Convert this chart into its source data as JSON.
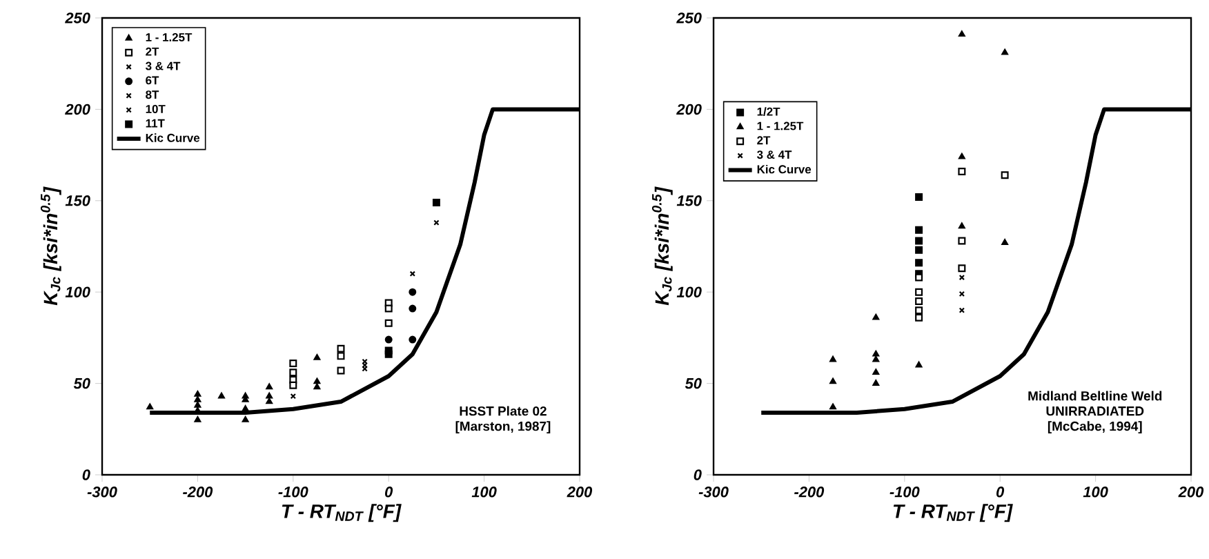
{
  "chart_data": [
    {
      "type": "scatter",
      "xlabel": "T - RT$_{NDT}$ [°F]",
      "ylabel": "K$_{Jc}$ [ksi*in$^{0.5}$]",
      "xlim": [
        -300,
        200
      ],
      "ylim": [
        0,
        250
      ],
      "xticks": [
        -300,
        -200,
        -100,
        0,
        100,
        200
      ],
      "yticks": [
        0,
        50,
        100,
        150,
        200,
        250
      ],
      "grid": false,
      "legend": "top left",
      "annotations": [
        "HSST Plate 02",
        "[Marston, 1987]"
      ],
      "series": [
        {
          "name": "1 - 1.25T",
          "color": "#000000",
          "marker": "triangle",
          "x": [
            -250,
            -200,
            -200,
            -200,
            -200,
            -200,
            -175,
            -150,
            -150,
            -150,
            -150,
            -125,
            -125,
            -125,
            -75,
            -75,
            -75
          ],
          "values": [
            37,
            44,
            41,
            38,
            35,
            30,
            43,
            43,
            41,
            36,
            30,
            48,
            43,
            40,
            64,
            51,
            48
          ]
        },
        {
          "name": "2T",
          "color": "#ffffff",
          "marker": "square",
          "x": [
            -100,
            -100,
            -100,
            -100,
            -50,
            -50,
            -50,
            0,
            0,
            0
          ],
          "values": [
            61,
            56,
            52,
            49,
            69,
            65,
            57,
            94,
            91,
            83
          ]
        },
        {
          "name": "3 & 4T",
          "color": "#000000",
          "marker": "cross",
          "x": [
            -25,
            -25,
            -25
          ],
          "values": [
            62,
            60,
            58
          ]
        },
        {
          "name": "6T",
          "color": "#000000",
          "marker": "circle",
          "x": [
            0,
            25,
            25,
            25
          ],
          "values": [
            74,
            100,
            91,
            74
          ]
        },
        {
          "name": "8T",
          "color": "#000000",
          "marker": "cross",
          "x": [
            -100
          ],
          "values": [
            43
          ]
        },
        {
          "name": "10T",
          "color": "#000000",
          "marker": "cross",
          "x": [
            25,
            50
          ],
          "values": [
            110,
            138
          ]
        },
        {
          "name": "11T",
          "color": "#000000",
          "marker": "square",
          "x": [
            0,
            0,
            50
          ],
          "values": [
            68,
            66,
            149
          ]
        },
        {
          "name": "Kic Curve",
          "type": "line",
          "color": "#000000",
          "marker": "none",
          "line_style": "solid",
          "x": [
            -250,
            -200,
            -150,
            -100,
            -50,
            0,
            25,
            50,
            75,
            90,
            100,
            109,
            200
          ],
          "values": [
            34,
            34,
            34,
            36,
            40,
            54,
            66,
            89,
            126,
            160,
            186,
            200,
            200
          ]
        }
      ]
    },
    {
      "type": "scatter",
      "xlabel": "T - RT$_{NDT}$ [°F]",
      "ylabel": "K$_{Jc}$ [ksi*in$^{0.5}$]",
      "xlim": [
        -300,
        200
      ],
      "ylim": [
        0,
        250
      ],
      "xticks": [
        -300,
        -200,
        -100,
        0,
        100,
        200
      ],
      "yticks": [
        0,
        50,
        100,
        150,
        200,
        250
      ],
      "grid": false,
      "legend": "left",
      "annotations": [
        "Midland Beltline Weld",
        "UNIRRADIATED",
        "[McCabe, 1994]"
      ],
      "series": [
        {
          "name": "1/2T",
          "color": "#000000",
          "marker": "square",
          "x": [
            -85,
            -85,
            -85,
            -85,
            -85,
            -85
          ],
          "values": [
            152,
            134,
            128,
            123,
            116,
            110
          ]
        },
        {
          "name": "1 - 1.25T",
          "color": "#000000",
          "marker": "triangle",
          "x": [
            -175,
            -175,
            -175,
            -130,
            -130,
            -130,
            -130,
            -130,
            -85,
            -40,
            -40,
            -40,
            5,
            5
          ],
          "values": [
            63,
            51,
            37,
            86,
            66,
            63,
            56,
            50,
            60,
            241,
            174,
            136,
            231,
            127
          ]
        },
        {
          "name": "2T",
          "color": "#ffffff",
          "marker": "square",
          "x": [
            -85,
            -85,
            -85,
            -85,
            -85,
            -40,
            -40,
            -40,
            5
          ],
          "values": [
            108,
            100,
            95,
            90,
            86,
            166,
            128,
            113,
            164
          ]
        },
        {
          "name": "3 & 4T",
          "color": "#000000",
          "marker": "cross",
          "x": [
            -40,
            -40,
            -40
          ],
          "values": [
            108,
            99,
            90
          ]
        },
        {
          "name": "Kic Curve",
          "type": "line",
          "color": "#000000",
          "marker": "none",
          "line_style": "solid",
          "x": [
            -250,
            -200,
            -150,
            -100,
            -50,
            0,
            25,
            50,
            75,
            90,
            100,
            109,
            200
          ],
          "values": [
            34,
            34,
            34,
            36,
            40,
            54,
            66,
            89,
            126,
            160,
            186,
            200,
            200
          ]
        }
      ]
    }
  ]
}
